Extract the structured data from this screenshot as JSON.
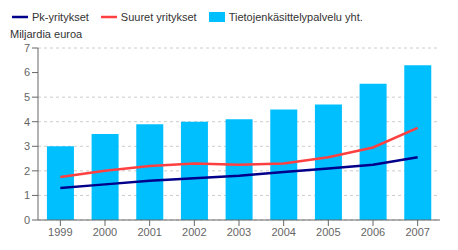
{
  "chart_data": {
    "type": "bar",
    "ylabel": "Miljardia euroa",
    "categories": [
      "1999",
      "2000",
      "2001",
      "2002",
      "2003",
      "2004",
      "2005",
      "2006",
      "2007"
    ],
    "series": [
      {
        "name": "Pk-yritykset",
        "type": "line",
        "color": "#00008B",
        "values": [
          1.3,
          1.45,
          1.6,
          1.7,
          1.8,
          1.95,
          2.1,
          2.25,
          2.55
        ]
      },
      {
        "name": "Suuret yritykset",
        "type": "line",
        "color": "#FF4040",
        "values": [
          1.75,
          2.0,
          2.2,
          2.3,
          2.25,
          2.3,
          2.55,
          2.95,
          3.75
        ]
      },
      {
        "name": "Tietojenkäsittelypalvelu yht.",
        "type": "bar",
        "color": "#00BFFF",
        "values": [
          3.0,
          3.5,
          3.9,
          4.0,
          4.1,
          4.5,
          4.7,
          5.55,
          6.3
        ]
      }
    ],
    "ylim": [
      0,
      7
    ],
    "yticks": [
      0,
      1,
      2,
      3,
      4,
      5,
      6,
      7
    ],
    "grid": true,
    "legend": "upper left"
  }
}
